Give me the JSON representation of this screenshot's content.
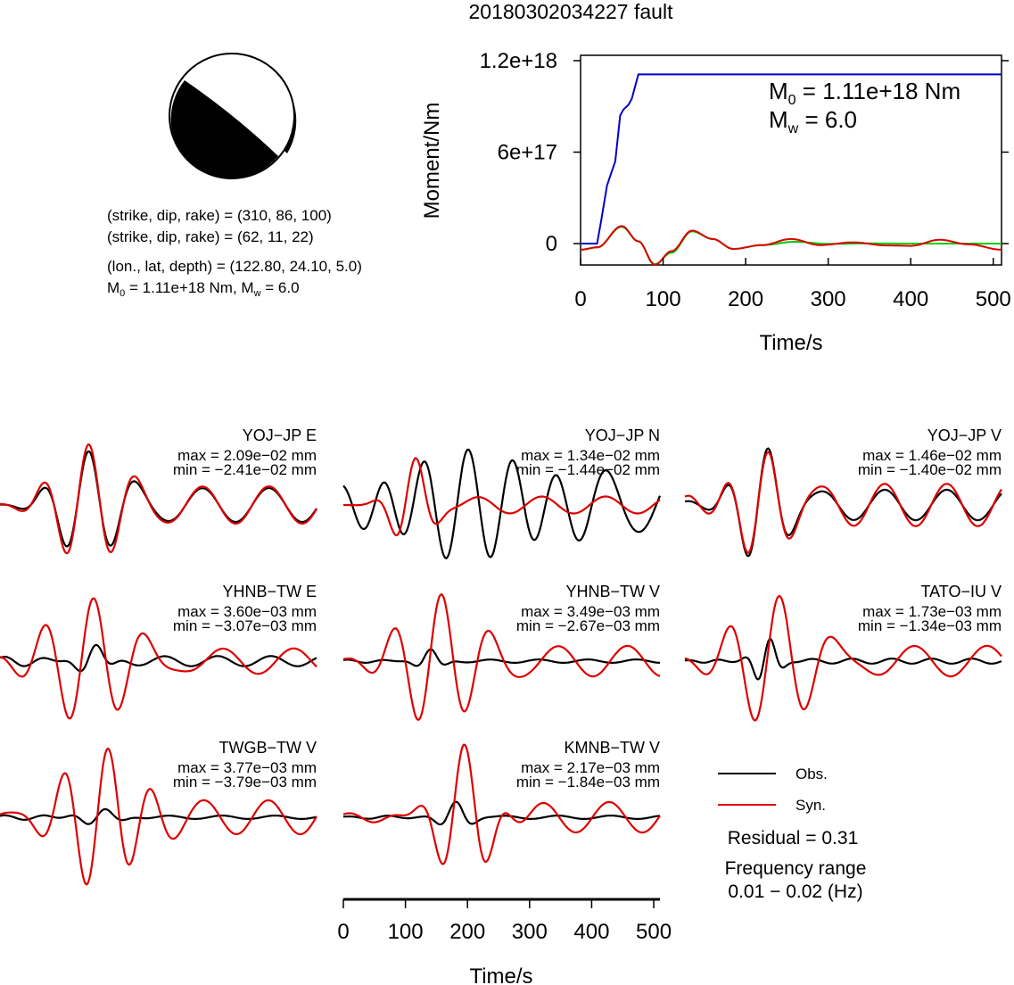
{
  "title": "20180302034227 fault",
  "mechanism": {
    "line1": "(strike, dip, rake) = (310, 86, 100)",
    "line2": "(strike, dip, rake) = (62, 11, 22)",
    "line3": "(lon., lat, depth) = (122.80, 24.10, 5.0)",
    "m0_prefix": "M",
    "m0_sub": "0",
    "m0_rest": " = 1.11e+18 Nm, M",
    "mw_sub": "w",
    "mw_rest": " = 6.0"
  },
  "moment": {
    "m0_label": "M",
    "m0_sub": "0",
    "m0_value": " = 1.11e+18 Nm",
    "mw_label": "M",
    "mw_sub": "w",
    "mw_value": " = 6.0"
  },
  "chart_data": [
    {
      "type": "line",
      "title": "",
      "xlabel": "Time/s",
      "ylabel": "Moment/Nm",
      "xlim": [
        0,
        510
      ],
      "ylim": [
        -1.5e+17,
        1.23e+18
      ],
      "xticks": [
        "0",
        "100",
        "200",
        "300",
        "400",
        "500"
      ],
      "yticks": [
        "0",
        "6e+17",
        "1.2e+18"
      ],
      "ytick_values": [
        0,
        6e+17,
        1.2e+18
      ],
      "series": [
        {
          "color": "#0000cc",
          "x": [
            0,
            20,
            25,
            32,
            37,
            42,
            48,
            52,
            58,
            62,
            70,
            80,
            510
          ],
          "y": [
            0,
            0,
            1.5e+17,
            3.8e+17,
            4.6e+17,
            5.4e+17,
            8.4e+17,
            8.8e+17,
            9.1e+17,
            9.5e+17,
            1.11e+18,
            1.11e+18,
            1.11e+18
          ]
        },
        {
          "color": "#00cc00",
          "x": [
            0,
            20,
            50,
            70,
            90,
            110,
            135,
            160,
            185,
            220,
            260,
            300,
            350,
            400,
            450,
            510
          ],
          "y": [
            -4e+16,
            -2.5e+16,
            1.1e+17,
            1.5e+16,
            -1.35e+17,
            -6e+16,
            8e+16,
            3e+16,
            -3.5e+16,
            -1e+16,
            1.2e+16,
            -2000000000000000.0,
            1000000000000000.0,
            0,
            0,
            0
          ]
        },
        {
          "color": "#dd0000",
          "x": [
            0,
            20,
            50,
            70,
            90,
            110,
            135,
            160,
            185,
            220,
            255,
            290,
            330,
            370,
            400,
            435,
            470,
            510
          ],
          "y": [
            -4e+16,
            -2.5e+16,
            1.15e+17,
            1.5e+16,
            -1.4e+17,
            -5e+16,
            8.5e+16,
            3e+16,
            -3.5e+16,
            -1e+16,
            3e+16,
            -1e+16,
            8000000000000000.0,
            -1.2e+16,
            -1.5e+16,
            2.5e+16,
            -5000000000000000.0,
            -4e+16
          ]
        }
      ]
    },
    {
      "type": "line",
      "xlabel": "Time/s",
      "xlim": [
        0,
        510
      ],
      "xticks": [
        "0",
        "100",
        "200",
        "300",
        "400",
        "500"
      ],
      "legend": {
        "obs": "Obs.",
        "syn": "Syn.",
        "colors": {
          "obs": "#000000",
          "syn": "#dd0000"
        }
      },
      "residual": "Residual = 0.31",
      "freq_label": "Frequency range",
      "freq_value": "0.01 − 0.02 (Hz)",
      "stations": [
        {
          "name": "YOJ−JP E",
          "max": "max = 2.09e−02 mm",
          "min": "min = −2.41e−02 mm",
          "obs": {
            "period": 75,
            "t0": 140,
            "w": 65,
            "a": 0.64,
            "pre": 0.0,
            "tail": 0.2,
            "phase": 1.3
          },
          "syn": {
            "period": 75,
            "t0": 140,
            "w": 70,
            "a": 0.72,
            "pre": 0.0,
            "tail": 0.22,
            "phase": 1.3
          }
        },
        {
          "name": "YOJ−JP N",
          "max": "max = 1.34e−02 mm",
          "min": "min = −1.44e−02 mm",
          "obs": {
            "period": 72,
            "t0": 190,
            "w": 180,
            "a": 0.66,
            "pre": 0.3,
            "tail": 0.35,
            "phase": 0.6
          },
          "syn": {
            "period": 72,
            "t0": 110,
            "w": 40,
            "a": 0.55,
            "pre": 0.0,
            "tail": 0.1,
            "phase": 0.9
          }
        },
        {
          "name": "YOJ−JP V",
          "max": "max = 1.46e−02 mm",
          "min": "min = −1.40e−02 mm",
          "obs": {
            "period": 70,
            "t0": 120,
            "w": 50,
            "a": 0.7,
            "pre": 0.05,
            "tail": 0.18,
            "phase": 0.2
          },
          "syn": {
            "period": 70,
            "t0": 120,
            "w": 55,
            "a": 0.64,
            "pre": 0.12,
            "tail": 0.25,
            "phase": 0.2
          }
        },
        {
          "name": "YHNB−TW E",
          "max": "max = 3.60e−03 mm",
          "min": "min = −3.07e−03 mm",
          "obs": {
            "period": 60,
            "t0": 150,
            "w": 30,
            "a": 0.2,
            "pre": 0.06,
            "tail": 0.06,
            "phase": 1.0
          },
          "syn": {
            "period": 80,
            "t0": 140,
            "w": 90,
            "a": 0.75,
            "pre": 0.0,
            "tail": 0.15,
            "phase": 0.7
          }
        },
        {
          "name": "YHNB−TW V",
          "max": "max = 3.49e−03 mm",
          "min": "min = −2.67e−03 mm",
          "obs": {
            "period": 55,
            "t0": 140,
            "w": 25,
            "a": 0.14,
            "pre": 0.02,
            "tail": 0.02,
            "phase": 1.5
          },
          "syn": {
            "period": 78,
            "t0": 150,
            "w": 80,
            "a": 0.8,
            "pre": 0.0,
            "tail": 0.18,
            "phase": 0.9
          }
        },
        {
          "name": "TATO−IU V",
          "max": "max = 1.73e−03 mm",
          "min": "min = −1.34e−03 mm",
          "obs": {
            "period": 45,
            "t0": 130,
            "w": 25,
            "a": 0.28,
            "pre": 0.02,
            "tail": 0.03,
            "phase": 0.4
          },
          "syn": {
            "period": 82,
            "t0": 140,
            "w": 85,
            "a": 0.78,
            "pre": 0.0,
            "tail": 0.18,
            "phase": 0.6
          }
        },
        {
          "name": "TWGB−TW V",
          "max": "max = 3.77e−03 mm",
          "min": "min = −3.79e−03 mm",
          "obs": {
            "period": 60,
            "t0": 160,
            "w": 40,
            "a": 0.1,
            "pre": 0.03,
            "tail": 0.02,
            "phase": 0.5
          },
          "syn": {
            "period": 72,
            "t0": 160,
            "w": 80,
            "a": 0.85,
            "pre": 0.06,
            "tail": 0.2,
            "phase": 0.3
          }
        },
        {
          "name": "KMNB−TW V",
          "max": "max = 2.17e−03 mm",
          "min": "min = −1.84e−03 mm",
          "obs": {
            "period": 60,
            "t0": 180,
            "w": 30,
            "a": 0.18,
            "pre": 0.02,
            "tail": 0.02,
            "phase": 1.4
          },
          "syn": {
            "period": 75,
            "t0": 195,
            "w": 55,
            "a": 0.85,
            "pre": 0.06,
            "tail": 0.18,
            "phase": 1.6
          }
        }
      ]
    }
  ]
}
